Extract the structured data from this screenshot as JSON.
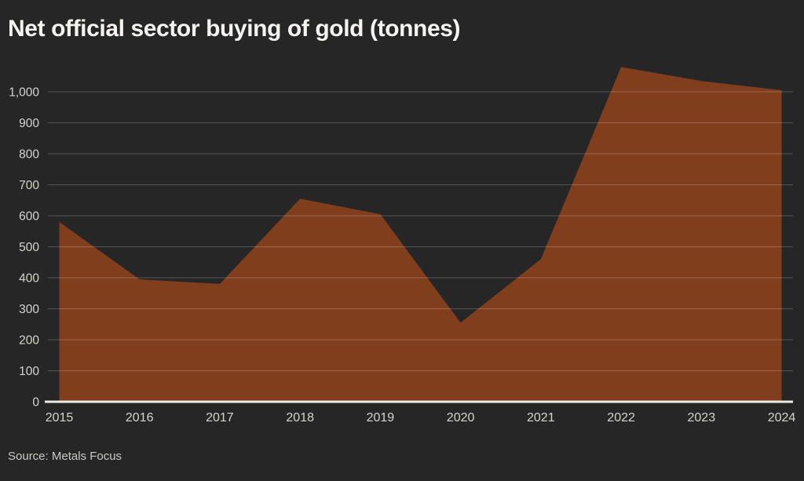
{
  "header": {
    "title": "Net official sector buying of gold (tonnes)"
  },
  "footer": {
    "source": "Source: Metals Focus"
  },
  "chart_data": {
    "type": "area",
    "title": "Net official sector buying of gold (tonnes)",
    "source": "Source: Metals Focus",
    "categories": [
      "2015",
      "2016",
      "2017",
      "2018",
      "2019",
      "2020",
      "2021",
      "2022",
      "2023",
      "2024"
    ],
    "values": [
      580,
      395,
      380,
      655,
      605,
      255,
      460,
      1080,
      1035,
      1005
    ],
    "series_name": "Net official sector gold buying (tonnes)",
    "xlabel": "",
    "ylabel": "",
    "ylim": [
      0,
      1000
    ],
    "yticks": [
      0,
      100,
      200,
      300,
      400,
      500,
      600,
      700,
      800,
      900,
      1000
    ],
    "ytick_labels": [
      "0",
      "100",
      "200",
      "300",
      "400",
      "500",
      "600",
      "700",
      "800",
      "900",
      "1,000"
    ],
    "grid": true,
    "legend": "none",
    "colors": {
      "background": "#262626",
      "area": "#813e1d",
      "grid": "rgba(255,255,255,0.22)",
      "baseline": "#ebebe4",
      "tick_text": "#d6d4d0",
      "title_text": "#f5f4f0",
      "source_text": "#cbc9c5"
    }
  }
}
